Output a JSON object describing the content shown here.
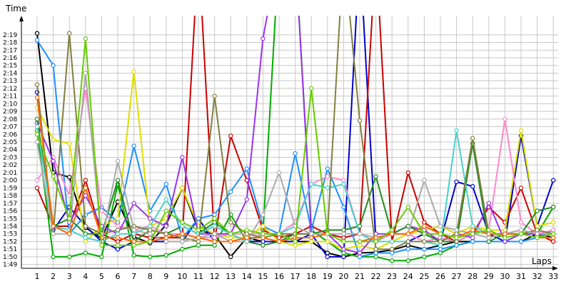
{
  "chart_data": {
    "type": "line",
    "title": "",
    "xlabel": "Laps",
    "ylabel": "Time",
    "grid": true,
    "legend": "none",
    "xlim": [
      1,
      33
    ],
    "ylim": [
      108.5,
      141.5
    ],
    "x_ticks": [
      1,
      2,
      3,
      4,
      5,
      6,
      7,
      8,
      9,
      10,
      11,
      12,
      13,
      14,
      15,
      16,
      17,
      18,
      19,
      20,
      21,
      22,
      23,
      24,
      25,
      26,
      27,
      28,
      29,
      30,
      31,
      32,
      33
    ],
    "y_ticks": [
      {
        "value": 109,
        "label": "1:49"
      },
      {
        "value": 110,
        "label": "1:50"
      },
      {
        "value": 111,
        "label": "1:51"
      },
      {
        "value": 112,
        "label": "1:52"
      },
      {
        "value": 113,
        "label": "1:53"
      },
      {
        "value": 114,
        "label": "1:54"
      },
      {
        "value": 115,
        "label": "1:55"
      },
      {
        "value": 116,
        "label": "1:56"
      },
      {
        "value": 117,
        "label": "1:57"
      },
      {
        "value": 118,
        "label": "1:58"
      },
      {
        "value": 119,
        "label": "1:59"
      },
      {
        "value": 120,
        "label": "2:00"
      },
      {
        "value": 121,
        "label": "2:01"
      },
      {
        "value": 122,
        "label": "2:02"
      },
      {
        "value": 123,
        "label": "2:03"
      },
      {
        "value": 124,
        "label": "2:04"
      },
      {
        "value": 125,
        "label": "2:05"
      },
      {
        "value": 126,
        "label": "2:06"
      },
      {
        "value": 127,
        "label": "2:07"
      },
      {
        "value": 128,
        "label": "2:08"
      },
      {
        "value": 129,
        "label": "2:09"
      },
      {
        "value": 130,
        "label": "2:10"
      },
      {
        "value": 131,
        "label": "2:11"
      },
      {
        "value": 132,
        "label": "2:12"
      },
      {
        "value": 133,
        "label": "2:13"
      },
      {
        "value": 134,
        "label": "2:14"
      },
      {
        "value": 135,
        "label": "2:15"
      },
      {
        "value": 136,
        "label": "2:16"
      },
      {
        "value": 137,
        "label": "2:17"
      },
      {
        "value": 138,
        "label": "2:18"
      },
      {
        "value": 139,
        "label": "2:19"
      }
    ],
    "x": [
      1,
      2,
      3,
      4,
      5,
      6,
      7,
      8,
      9,
      10,
      11,
      12,
      13,
      14,
      15,
      16,
      17,
      18,
      19,
      20,
      21,
      22,
      23,
      24,
      25,
      26,
      27,
      28,
      29,
      30,
      31,
      32,
      33
    ],
    "series": [
      {
        "color": "#000000",
        "values": [
          139.2,
          121.0,
          120.4,
          113.8,
          112.4,
          117.2,
          112.6,
          111.8,
          114.2,
          119.0,
          113.5,
          112.9,
          110.0,
          112.5,
          112.0,
          112.0,
          112.0,
          112.0,
          110.5,
          110.0,
          110.5,
          110.6,
          110.9,
          111.5,
          111.0,
          111.5,
          112.0,
          112.0,
          112.0,
          112.0,
          112.0,
          113.0,
          112.5
        ]
      },
      {
        "color": "#0000cc",
        "values": [
          131.5,
          113.5,
          116.5,
          114.0,
          112.0,
          111.0,
          112.0,
          112.0,
          112.0,
          112.0,
          115.0,
          112.0,
          112.0,
          112.0,
          112.0,
          112.0,
          112.0,
          113.0,
          110.0,
          110.0,
          150.0,
          112.0,
          112.0,
          112.0,
          113.0,
          112.0,
          119.8,
          119.2,
          113.0,
          112.0,
          125.8,
          114.0,
          120.0
        ]
      },
      {
        "color": "#cc0000",
        "values": [
          119.0,
          114.0,
          114.0,
          120.0,
          113.0,
          112.0,
          113.0,
          112.5,
          112.5,
          112.5,
          150.0,
          112.0,
          125.8,
          120.0,
          113.5,
          112.5,
          113.0,
          114.0,
          113.0,
          112.5,
          113.0,
          150.0,
          112.0,
          121.0,
          114.5,
          113.0,
          112.0,
          113.0,
          116.5,
          114.5,
          119.0,
          113.0,
          112.0
        ]
      },
      {
        "color": "#00aa00",
        "values": [
          126.5,
          110.0,
          110.0,
          110.5,
          110.0,
          119.5,
          110.2,
          110.0,
          110.2,
          111.0,
          111.5,
          111.5,
          115.5,
          112.0,
          113.0,
          150.0,
          150.0,
          113.5,
          112.0,
          110.5,
          110.0,
          110.0,
          109.5,
          109.5,
          110.0,
          110.5,
          111.5,
          112.0,
          112.0,
          112.0,
          113.0,
          113.0,
          116.5
        ]
      },
      {
        "color": "#1e90ff",
        "values": [
          138.3,
          135.0,
          113.0,
          115.5,
          116.5,
          114.5,
          124.5,
          116.0,
          119.5,
          112.5,
          115.0,
          115.5,
          118.5,
          121.5,
          114.0,
          113.0,
          123.5,
          113.5,
          121.5,
          116.5,
          110.0,
          110.5,
          110.5,
          111.0,
          111.0,
          111.0,
          111.5,
          112.0,
          112.0,
          112.0,
          112.0,
          112.5,
          113.5
        ]
      },
      {
        "color": "#dddd00",
        "values": [
          129.5,
          125.3,
          124.8,
          112.0,
          114.0,
          115.0,
          134.2,
          114.0,
          115.0,
          119.0,
          114.0,
          113.0,
          112.5,
          112.5,
          114.0,
          112.0,
          111.5,
          112.0,
          112.0,
          111.0,
          111.5,
          111.0,
          112.0,
          113.0,
          113.5,
          114.0,
          113.0,
          114.0,
          113.5,
          113.5,
          126.5,
          114.0,
          114.5
        ]
      },
      {
        "color": "#ff88cc",
        "values": [
          120.0,
          123.0,
          118.0,
          132.0,
          116.0,
          114.0,
          113.5,
          114.0,
          113.0,
          113.0,
          112.5,
          112.5,
          113.0,
          113.0,
          113.0,
          113.0,
          114.5,
          119.5,
          120.5,
          120.0,
          113.0,
          112.0,
          113.0,
          113.0,
          112.0,
          112.5,
          112.0,
          113.0,
          113.5,
          128.0,
          114.5,
          113.0,
          113.5
        ]
      },
      {
        "color": "#9933ee",
        "values": [
          127.5,
          122.5,
          114.5,
          118.0,
          114.0,
          113.0,
          117.0,
          115.0,
          114.0,
          123.0,
          113.0,
          113.0,
          113.0,
          117.5,
          138.5,
          150.0,
          150.0,
          113.0,
          113.0,
          111.0,
          110.5,
          113.0,
          113.0,
          114.0,
          113.5,
          112.0,
          113.0,
          112.5,
          117.0,
          112.0,
          113.0,
          113.0,
          113.0
        ]
      },
      {
        "color": "#228b22",
        "values": [
          128.0,
          114.0,
          115.0,
          113.0,
          113.0,
          120.0,
          112.0,
          113.5,
          113.0,
          114.0,
          113.0,
          114.5,
          113.0,
          112.0,
          111.5,
          112.0,
          113.0,
          113.0,
          113.5,
          113.5,
          114.0,
          120.5,
          113.0,
          114.0,
          113.0,
          112.0,
          112.0,
          124.8,
          112.0,
          113.0,
          113.0,
          116.0,
          116.5
        ]
      },
      {
        "color": "#48d1cc",
        "values": [
          127.0,
          114.0,
          113.5,
          112.5,
          112.0,
          113.0,
          113.0,
          114.0,
          117.5,
          114.0,
          113.0,
          114.0,
          113.0,
          112.0,
          113.0,
          113.0,
          114.0,
          119.5,
          119.0,
          119.5,
          113.0,
          112.0,
          112.0,
          112.0,
          112.0,
          111.5,
          126.5,
          114.0,
          113.0,
          113.0,
          113.0,
          112.5,
          113.0
        ]
      },
      {
        "color": "#808040",
        "values": [
          132.5,
          113.0,
          139.2,
          114.0,
          113.0,
          113.5,
          114.0,
          113.5,
          113.0,
          112.5,
          112.0,
          131.0,
          114.5,
          113.0,
          112.5,
          113.0,
          113.0,
          113.0,
          113.0,
          150.0,
          127.8,
          111.0,
          111.0,
          112.0,
          112.0,
          112.0,
          113.0,
          125.5,
          113.0,
          113.0,
          113.0,
          113.5,
          113.0
        ]
      },
      {
        "color": "#aaaaaa",
        "values": [
          125.0,
          113.0,
          113.0,
          134.0,
          112.0,
          122.5,
          113.5,
          113.0,
          112.0,
          112.0,
          112.5,
          113.0,
          112.0,
          112.0,
          115.5,
          121.0,
          114.0,
          113.0,
          113.0,
          113.0,
          113.0,
          112.5,
          113.0,
          113.0,
          120.0,
          114.0,
          113.5,
          113.0,
          112.5,
          113.0,
          113.5,
          113.0,
          113.0
        ]
      },
      {
        "color": "#ff6600",
        "values": [
          130.8,
          114.0,
          113.0,
          119.0,
          112.5,
          112.5,
          112.0,
          112.0,
          112.5,
          113.0,
          112.5,
          112.0,
          112.0,
          112.5,
          112.5,
          112.0,
          112.5,
          112.5,
          113.0,
          112.0,
          112.0,
          112.5,
          113.0,
          113.0,
          114.0,
          113.0,
          112.5,
          113.5,
          113.0,
          113.0,
          113.0,
          112.5,
          112.5
        ]
      },
      {
        "color": "#66cc00",
        "values": [
          126.0,
          120.5,
          115.0,
          138.5,
          111.5,
          111.5,
          111.5,
          112.0,
          116.0,
          114.5,
          113.5,
          115.0,
          113.0,
          113.5,
          113.0,
          113.0,
          112.0,
          132.0,
          113.0,
          112.0,
          112.0,
          112.0,
          113.5,
          116.5,
          113.0,
          113.0,
          112.5,
          113.0,
          113.5,
          112.5,
          113.0,
          112.5,
          113.0
        ]
      }
    ]
  }
}
